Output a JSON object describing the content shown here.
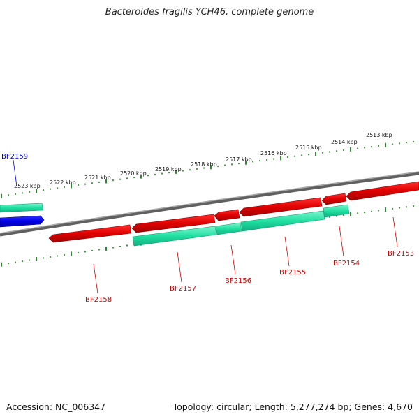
{
  "title": "Bacteroides fragilis YCH46, complete genome",
  "footer": {
    "accession": "Accession: NC_006347",
    "summary": "Topology: circular; Length: 5,277,274 bp; Genes: 4,670"
  },
  "scale_labels": [
    "2523 kbp",
    "2522 kbp",
    "2521 kbp",
    "2520 kbp",
    "2519 kbp",
    "2518 kbp",
    "2517 kbp",
    "2516 kbp",
    "2515 kbp",
    "2514 kbp",
    "2513 kbp"
  ],
  "genes": [
    {
      "id": "BF2159",
      "label": "BF2159",
      "color": "#0000cc"
    },
    {
      "id": "BF2158",
      "label": "BF2158",
      "color": "#cc0000"
    },
    {
      "id": "BF2157",
      "label": "BF2157",
      "color": "#cc0000"
    },
    {
      "id": "BF2156",
      "label": "BF2156",
      "color": "#cc0000"
    },
    {
      "id": "BF2155",
      "label": "BF2155",
      "color": "#cc0000"
    },
    {
      "id": "BF2154",
      "label": "BF2154",
      "color": "#cc0000"
    },
    {
      "id": "BF2153",
      "label": "BF2153",
      "color": "#cc0000"
    }
  ],
  "colors": {
    "cds_reverse": "#ee0000",
    "cds_forward": "#0000ee",
    "orf": "#22e0a0",
    "backbone": "#808080",
    "ruler": "#1a7a1a",
    "label_blue": "#0000cc",
    "label_red": "#cc0000"
  }
}
